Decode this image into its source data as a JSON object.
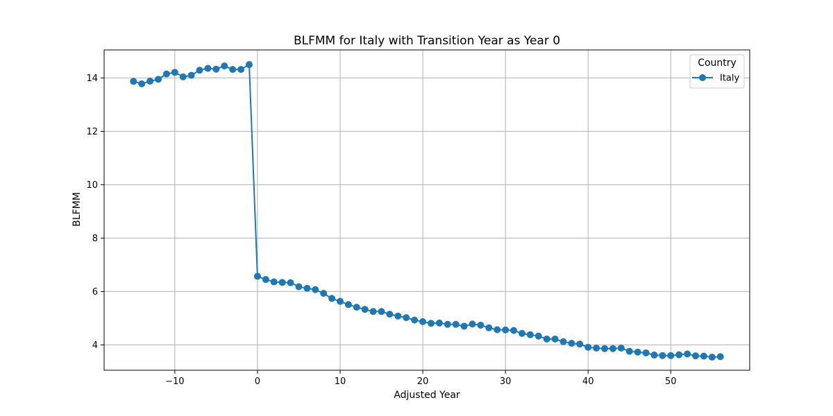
{
  "chart_data": {
    "type": "line",
    "title": "BLFMM for Italy with Transition Year as Year 0",
    "xlabel": "Adjusted Year",
    "ylabel": "BLFMM",
    "xlim": [
      -18.55,
      59.55
    ],
    "ylim": [
      3.05,
      15.05
    ],
    "xticks": [
      -10,
      0,
      10,
      20,
      30,
      40,
      50
    ],
    "xtick_labels": [
      "−10",
      "0",
      "10",
      "20",
      "30",
      "40",
      "50"
    ],
    "yticks": [
      4,
      6,
      8,
      10,
      12,
      14
    ],
    "ytick_labels": [
      "4",
      "6",
      "8",
      "10",
      "12",
      "14"
    ],
    "grid": true,
    "legend": {
      "title": "Country",
      "position": "top-right"
    },
    "series": [
      {
        "name": "Italy",
        "color": "#1f77b4",
        "marker": "circle",
        "x": [
          -15,
          -14,
          -13,
          -12,
          -11,
          -10,
          -9,
          -8,
          -7,
          -6,
          -5,
          -4,
          -3,
          -2,
          -1,
          0,
          1,
          2,
          3,
          4,
          5,
          6,
          7,
          8,
          9,
          10,
          11,
          12,
          13,
          14,
          15,
          16,
          17,
          18,
          19,
          20,
          21,
          22,
          23,
          24,
          25,
          26,
          27,
          28,
          29,
          30,
          31,
          32,
          33,
          34,
          35,
          36,
          37,
          38,
          39,
          40,
          41,
          42,
          43,
          44,
          45,
          46,
          47,
          48,
          49,
          50,
          51,
          52,
          53,
          54,
          55,
          56
        ],
        "y": [
          13.87,
          13.78,
          13.88,
          13.95,
          14.15,
          14.21,
          14.04,
          14.1,
          14.29,
          14.36,
          14.33,
          14.45,
          14.32,
          14.32,
          14.5,
          6.57,
          6.45,
          6.36,
          6.34,
          6.33,
          6.18,
          6.12,
          6.07,
          5.93,
          5.74,
          5.63,
          5.51,
          5.41,
          5.33,
          5.25,
          5.25,
          5.15,
          5.08,
          5.02,
          4.93,
          4.87,
          4.81,
          4.82,
          4.77,
          4.77,
          4.7,
          4.78,
          4.74,
          4.64,
          4.57,
          4.56,
          4.54,
          4.43,
          4.38,
          4.33,
          4.22,
          4.22,
          4.12,
          4.06,
          4.03,
          3.91,
          3.88,
          3.86,
          3.86,
          3.88,
          3.76,
          3.73,
          3.7,
          3.62,
          3.6,
          3.6,
          3.63,
          3.66,
          3.59,
          3.58,
          3.54,
          3.56
        ]
      }
    ]
  }
}
